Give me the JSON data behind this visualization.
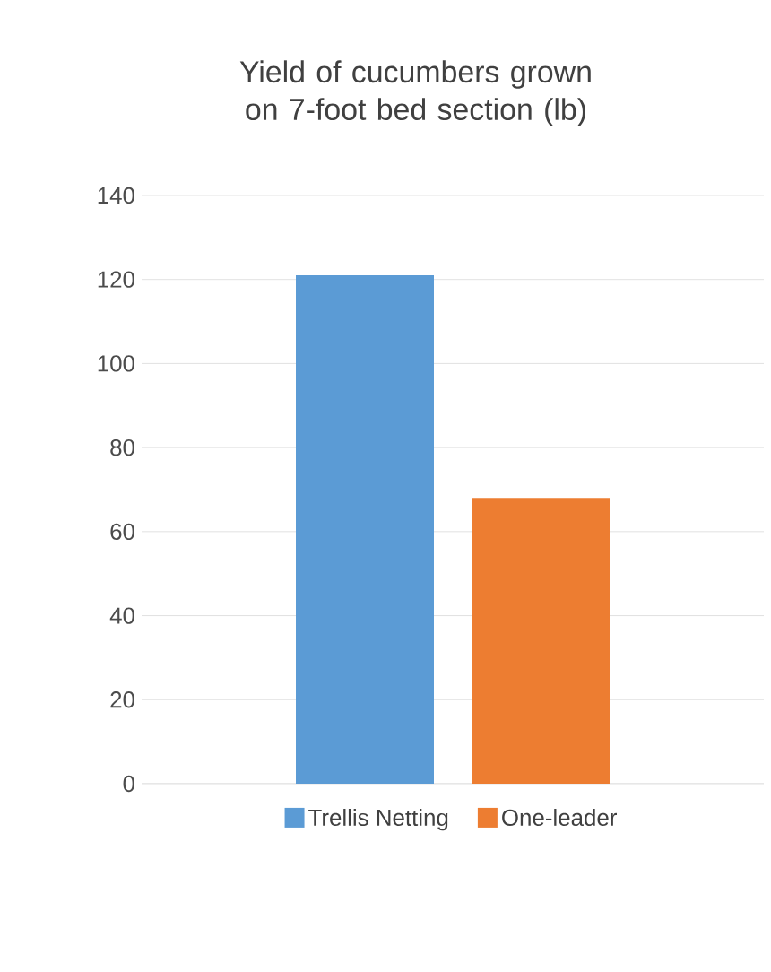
{
  "chart_data": {
    "type": "bar",
    "title": "Yield of cucumbers grown on 7-foot bed section (lb)",
    "categories": [
      null
    ],
    "series": [
      {
        "name": "Trellis Netting",
        "color": "#5b9bd5",
        "values": [
          121
        ]
      },
      {
        "name": "One-leader",
        "color": "#ed7d31",
        "values": [
          68
        ]
      }
    ],
    "ylim": [
      0,
      140
    ],
    "yticks": [
      0,
      20,
      40,
      60,
      80,
      100,
      120,
      140
    ],
    "grid": "y",
    "legend": "bottom"
  }
}
